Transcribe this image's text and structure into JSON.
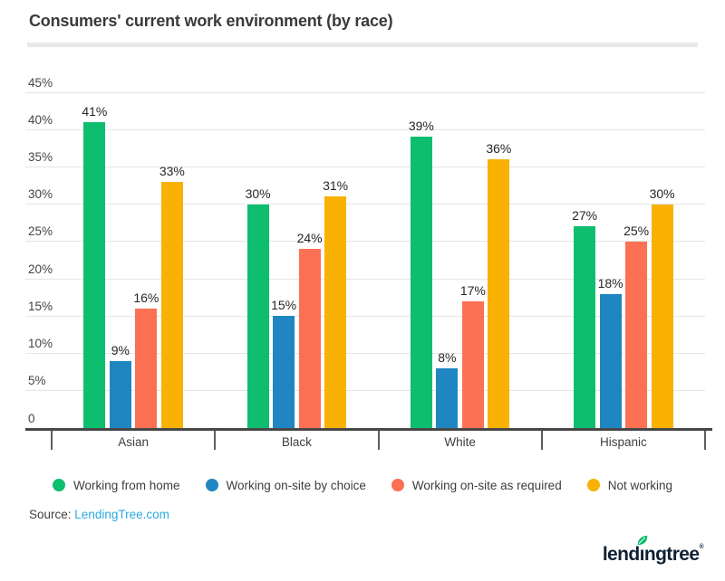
{
  "title": "Consumers' current work environment (by race)",
  "source": {
    "label": "Source:",
    "link_text": "LendingTree.com",
    "link_color": "#29abe2"
  },
  "logo": {
    "text_pre": "lend",
    "text_i": "ı",
    "text_post": "ngtree",
    "reg": "®",
    "text_color": "#0e2133",
    "leaf_color": "#00bd66"
  },
  "chart_data": {
    "type": "bar",
    "title": "Consumers' current work environment (by race)",
    "categories": [
      "Asian",
      "Black",
      "White",
      "Hispanic"
    ],
    "series": [
      {
        "name": "Working from home",
        "color": "#0dbe6e",
        "values": [
          41,
          30,
          39,
          27
        ]
      },
      {
        "name": "Working on-site by choice",
        "color": "#1f86c2",
        "values": [
          9,
          15,
          8,
          18
        ]
      },
      {
        "name": "Working on-site as required",
        "color": "#fc7053",
        "values": [
          16,
          24,
          17,
          25
        ]
      },
      {
        "name": "Not working",
        "color": "#f9b104",
        "values": [
          33,
          31,
          36,
          30
        ]
      }
    ],
    "value_suffix": "%",
    "ylim": [
      0,
      45
    ],
    "ytick_step": 5,
    "ytick_labels": [
      "0",
      "5%",
      "10%",
      "15%",
      "20%",
      "25%",
      "30%",
      "35%",
      "40%",
      "45%"
    ],
    "grid": "horizontal-only",
    "legend_position": "bottom",
    "xlabel": "",
    "ylabel": ""
  }
}
